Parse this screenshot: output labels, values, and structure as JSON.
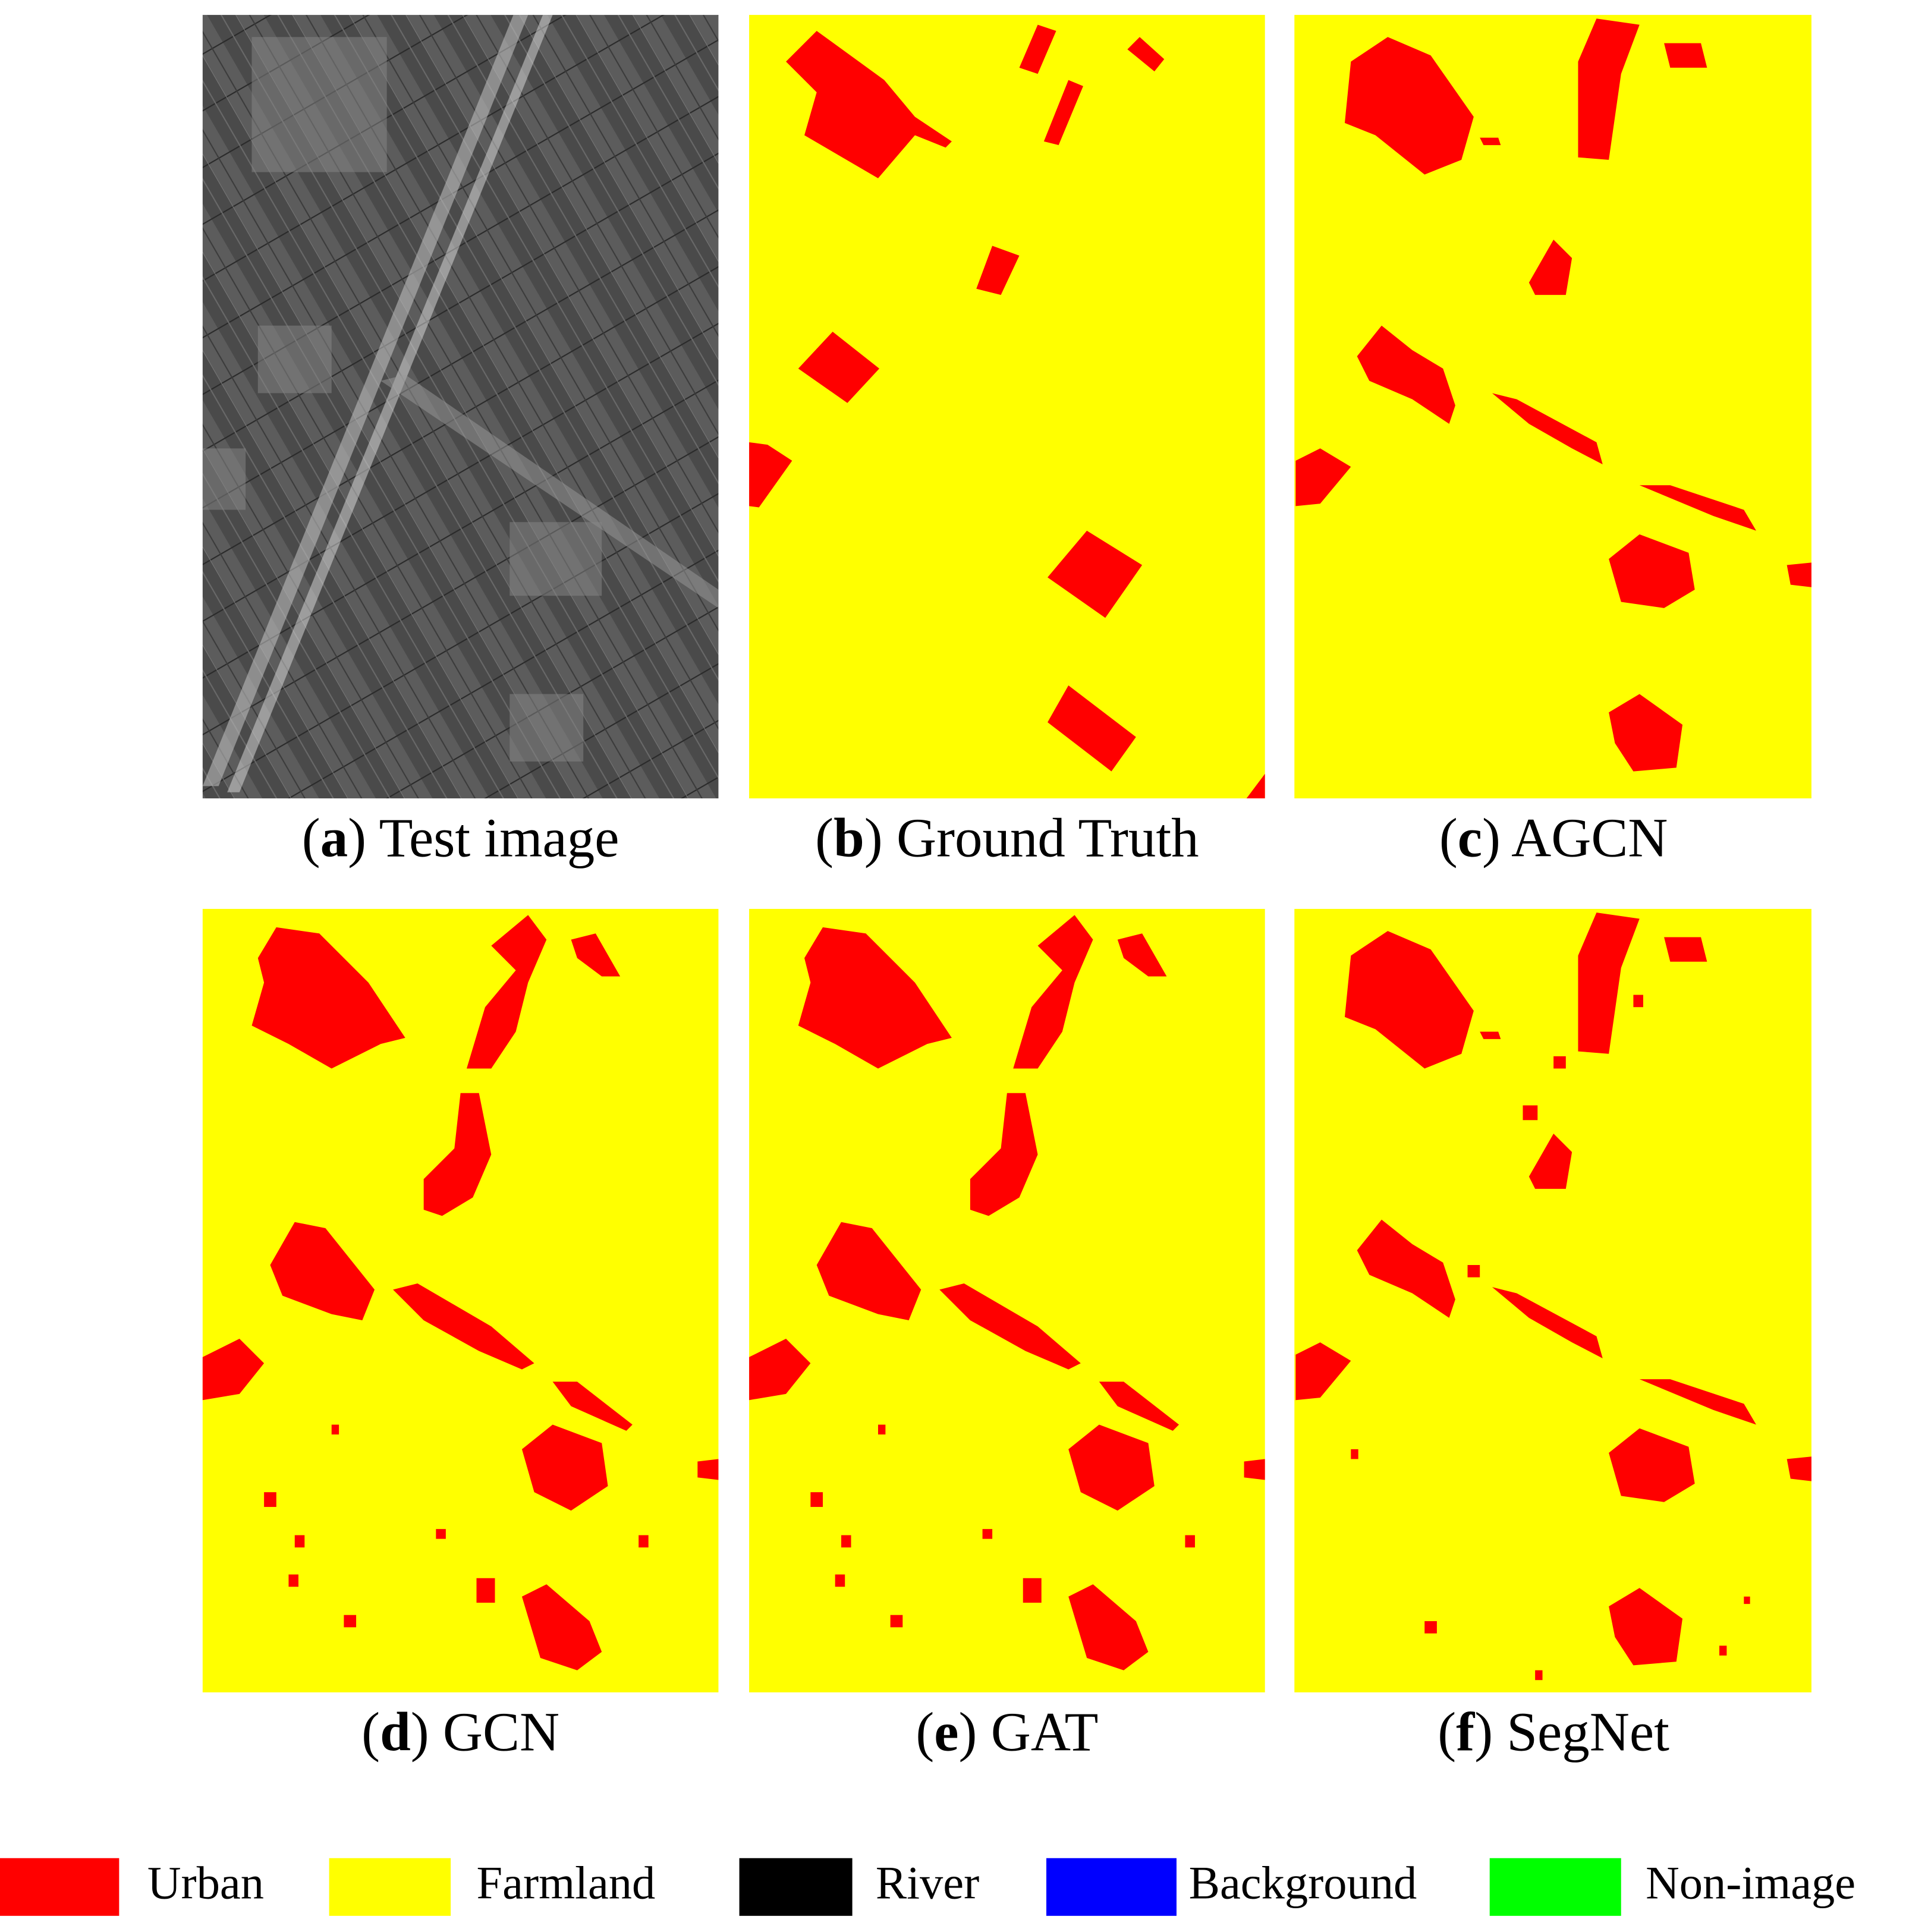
{
  "panels": [
    {
      "caption": {
        "open": "(",
        "letter": "a",
        "rest": ") Test image"
      }
    },
    {
      "caption": {
        "open": "(",
        "letter": "b",
        "rest": ") Ground Truth"
      }
    },
    {
      "caption": {
        "open": "(",
        "letter": "c",
        "rest": ") AGCN"
      }
    },
    {
      "caption": {
        "open": "(",
        "letter": "d",
        "rest": ") GCN"
      }
    },
    {
      "caption": {
        "open": "(",
        "letter": "e",
        "rest": ") GAT"
      }
    },
    {
      "caption": {
        "open": "(",
        "letter": "f",
        "rest": ") SegNet"
      }
    }
  ],
  "legend": [
    {
      "name": "Urban",
      "color": "#ff0000"
    },
    {
      "name": "Farmland",
      "color": "#ffff00"
    },
    {
      "name": "River",
      "color": "#000000"
    },
    {
      "name": "Background",
      "color": "#0000ff"
    },
    {
      "name": "Non-image",
      "color": "#00ff00"
    }
  ]
}
